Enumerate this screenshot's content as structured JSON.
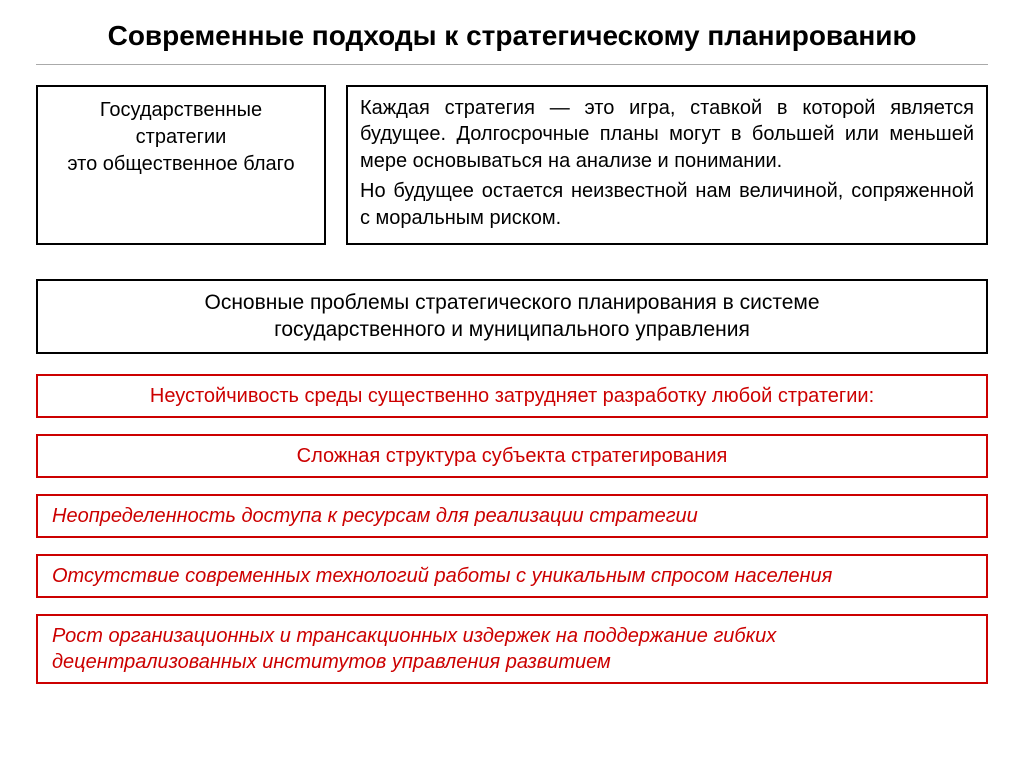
{
  "title": "Современные подходы к стратегическому планированию",
  "top": {
    "left_line1": "Государственные",
    "left_line2": "стратегии",
    "left_line3": "это общественное благо",
    "right_p1": "Каждая стратегия — это игра, ставкой в которой является будущее. Долгосрочные планы могут в большей или меньшей мере основываться на анализе и понимании.",
    "right_p2": "Но будущее остается неизвестной нам величиной, сопряженной с моральным риском."
  },
  "subheader_line1": "Основные проблемы стратегического планирования в системе",
  "subheader_line2": "государственного и муниципального управления",
  "red_boxes": [
    "Неустойчивость среды существенно затрудняет разработку любой стратегии:",
    "Сложная структура субъекта стратегирования",
    "Неопределенность  доступа к ресурсам для реализации стратегии",
    "Отсутствие современных технологий работы с уникальным спросом населения",
    "Рост организационных и трансакционных издержек на поддержание гибких децентрализованных институтов управления развитием"
  ],
  "styles": {
    "title_fontsize": 28,
    "body_fontsize": 20,
    "border_black": "#000000",
    "border_red": "#cc0000",
    "text_red": "#cc0000",
    "background": "#ffffff"
  }
}
